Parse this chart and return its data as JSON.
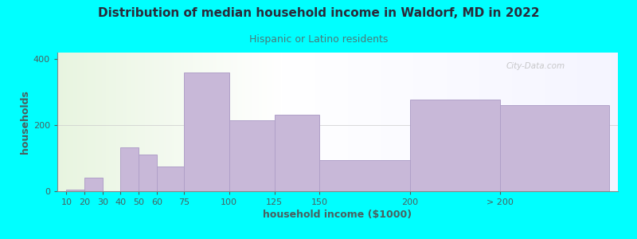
{
  "title": "Distribution of median household income in Waldorf, MD in 2022",
  "subtitle": "Hispanic or Latino residents",
  "xlabel": "household income ($1000)",
  "ylabel": "households",
  "background_color": "#00FFFF",
  "bar_color": "#c8b8d8",
  "bar_edge_color": "#b0a0c8",
  "title_color": "#2a2a3a",
  "subtitle_color": "#4a7a7a",
  "axis_label_color": "#4a6060",
  "tick_label_color": "#4a6060",
  "watermark": "City-Data.com",
  "categories": [
    "10",
    "20",
    "30",
    "40",
    "50",
    "60",
    "75",
    "100",
    "125",
    "150",
    "200",
    "> 200"
  ],
  "values": [
    5,
    42,
    0,
    133,
    110,
    75,
    360,
    215,
    232,
    95,
    278,
    260
  ],
  "bar_lefts": [
    10,
    20,
    30,
    40,
    50,
    60,
    75,
    100,
    125,
    150,
    200,
    250
  ],
  "bar_widths": [
    10,
    10,
    10,
    10,
    10,
    15,
    25,
    25,
    25,
    50,
    50,
    60
  ],
  "xtick_positions": [
    10,
    20,
    30,
    40,
    50,
    60,
    75,
    100,
    125,
    150,
    200,
    250
  ],
  "xtick_labels": [
    "10",
    "20",
    "30",
    "40",
    "50",
    "60",
    "75",
    "100",
    "125",
    "150",
    "200",
    "> 200"
  ],
  "xlim": [
    5,
    315
  ],
  "ylim": [
    0,
    420
  ],
  "yticks": [
    0,
    200,
    400
  ]
}
